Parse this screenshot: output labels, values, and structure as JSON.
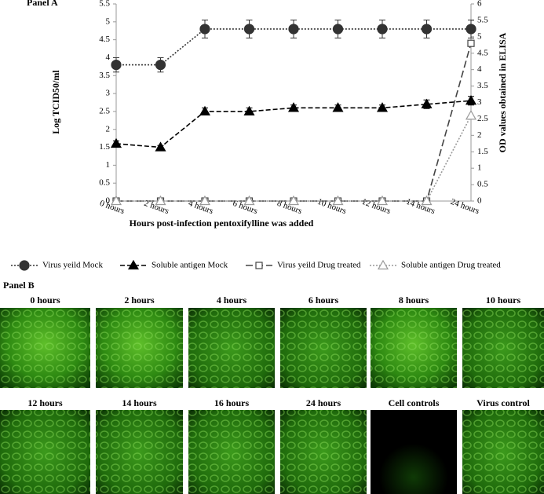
{
  "chart_data": {
    "type": "line",
    "panel": "Panel A",
    "xlabel": "Hours post-infection pentoxifylline was added",
    "ylabel": "Log TCID50/ml",
    "y2label": "OD values obtained in ELISA",
    "categories": [
      "0 hours",
      "2 hours",
      "4 hours",
      "6 hours",
      "8 hours",
      "10 hours",
      "12 hours",
      "14 hours",
      "24 hours"
    ],
    "ylim": [
      0,
      5.5
    ],
    "yticks": [
      0,
      0.5,
      1,
      1.5,
      2,
      2.5,
      3,
      3.5,
      4,
      4.5,
      5,
      5.5
    ],
    "y2lim": [
      0,
      6
    ],
    "y2ticks": [
      0,
      0.5,
      1,
      1.5,
      2,
      2.5,
      3,
      3.5,
      4,
      4.5,
      5,
      5.5,
      6
    ],
    "series": [
      {
        "name": "Virus yeild Mock",
        "color": "#333333",
        "marker": "circle",
        "dash": "dotted",
        "values": [
          3.8,
          3.8,
          4.8,
          4.8,
          4.8,
          4.8,
          4.8,
          4.8,
          4.8
        ],
        "errors": [
          0.2,
          0.2,
          0.25,
          0.25,
          0.25,
          0.25,
          0.25,
          0.25,
          0.25
        ]
      },
      {
        "name": "Soluble antigen Mock",
        "color": "#000000",
        "marker": "triangle",
        "dash": "dashed",
        "values": [
          1.6,
          1.5,
          2.5,
          2.5,
          2.6,
          2.6,
          2.6,
          2.7,
          2.8
        ],
        "errors": [
          0.08,
          0.05,
          0.1,
          0.1,
          0.08,
          0.08,
          0.08,
          0.12,
          0.12
        ]
      },
      {
        "name": "Virus yeild Drug treated",
        "color": "#444444",
        "marker": "square",
        "dash": "longdash",
        "axis": "y2",
        "values": [
          0,
          0,
          0,
          0,
          0,
          0,
          0,
          0,
          4.8
        ]
      },
      {
        "name": "Soluble antigen  Drug treated",
        "color": "#999999",
        "marker": "open-triangle",
        "dash": "dotted",
        "axis": "y2",
        "values": [
          0,
          0,
          0,
          0,
          0,
          0,
          0,
          0,
          2.6
        ]
      }
    ]
  },
  "panel_b": {
    "title": "Panel B",
    "images": [
      "0 hours",
      "2 hours",
      "4 hours",
      "6 hours",
      "8 hours",
      "10 hours",
      "12 hours",
      "14 hours",
      "16 hours",
      "24 hours",
      "Cell controls",
      "Virus control"
    ]
  }
}
